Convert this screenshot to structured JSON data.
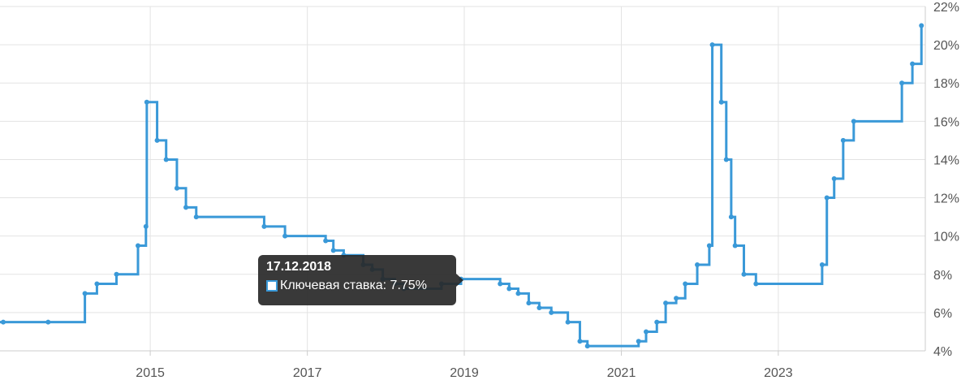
{
  "chart_data": {
    "type": "line",
    "step": true,
    "title": "",
    "xlabel": "",
    "ylabel": "",
    "series_color": "#3a99d8",
    "grid": true,
    "y_unit_suffix": "%",
    "ylim": [
      4,
      22
    ],
    "y_ticks": [
      "4%",
      "6%",
      "8%",
      "10%",
      "12%",
      "14%",
      "16%",
      "18%",
      "20%",
      "22%"
    ],
    "y_tick_values": [
      4,
      6,
      8,
      10,
      12,
      14,
      16,
      18,
      20,
      22
    ],
    "x_ticks": [
      "2015",
      "2017",
      "2019",
      "2021",
      "2023"
    ],
    "x_tick_values": [
      "2015-01-01",
      "2017-01-01",
      "2019-01-01",
      "2021-01-01",
      "2023-01-01"
    ],
    "xlim": [
      "2013-02-01",
      "2024-11-15"
    ],
    "series": [
      {
        "name": "Ключевая ставка",
        "points": [
          [
            "2013-09-13",
            5.5
          ],
          [
            "2014-03-03",
            7.0
          ],
          [
            "2014-04-28",
            7.5
          ],
          [
            "2014-07-28",
            8.0
          ],
          [
            "2014-11-05",
            9.5
          ],
          [
            "2014-12-12",
            10.5
          ],
          [
            "2014-12-16",
            17.0
          ],
          [
            "2015-02-02",
            15.0
          ],
          [
            "2015-03-16",
            14.0
          ],
          [
            "2015-05-05",
            12.5
          ],
          [
            "2015-06-16",
            11.5
          ],
          [
            "2015-08-03",
            11.0
          ],
          [
            "2016-06-14",
            10.5
          ],
          [
            "2016-09-19",
            10.0
          ],
          [
            "2017-03-27",
            9.75
          ],
          [
            "2017-05-02",
            9.25
          ],
          [
            "2017-06-19",
            9.0
          ],
          [
            "2017-09-18",
            8.5
          ],
          [
            "2017-10-30",
            8.25
          ],
          [
            "2017-12-18",
            7.75
          ],
          [
            "2018-02-12",
            7.5
          ],
          [
            "2018-03-26",
            7.25
          ],
          [
            "2018-09-17",
            7.5
          ],
          [
            "2018-12-17",
            7.75
          ],
          [
            "2019-06-17",
            7.5
          ],
          [
            "2019-07-29",
            7.25
          ],
          [
            "2019-09-09",
            7.0
          ],
          [
            "2019-10-28",
            6.5
          ],
          [
            "2019-12-16",
            6.25
          ],
          [
            "2020-02-10",
            6.0
          ],
          [
            "2020-04-27",
            5.5
          ],
          [
            "2020-06-22",
            4.5
          ],
          [
            "2020-07-27",
            4.25
          ],
          [
            "2021-03-22",
            4.5
          ],
          [
            "2021-04-26",
            5.0
          ],
          [
            "2021-06-15",
            5.5
          ],
          [
            "2021-07-26",
            6.5
          ],
          [
            "2021-09-13",
            6.75
          ],
          [
            "2021-10-25",
            7.5
          ],
          [
            "2021-12-20",
            8.5
          ],
          [
            "2022-02-14",
            9.5
          ],
          [
            "2022-02-28",
            20.0
          ],
          [
            "2022-04-11",
            17.0
          ],
          [
            "2022-05-04",
            14.0
          ],
          [
            "2022-05-27",
            11.0
          ],
          [
            "2022-06-14",
            9.5
          ],
          [
            "2022-07-25",
            8.0
          ],
          [
            "2022-09-19",
            7.5
          ],
          [
            "2023-07-24",
            8.5
          ],
          [
            "2023-08-15",
            12.0
          ],
          [
            "2023-09-18",
            13.0
          ],
          [
            "2023-10-30",
            15.0
          ],
          [
            "2023-12-18",
            16.0
          ],
          [
            "2024-07-29",
            18.0
          ],
          [
            "2024-09-16",
            19.0
          ],
          [
            "2024-10-28",
            21.0
          ]
        ],
        "end_date": "2024-10-28"
      }
    ],
    "tooltip": {
      "date": "17.12.2018",
      "label": "Ключевая ставка: 7.75%",
      "point": [
        "2018-12-17",
        7.75
      ]
    }
  }
}
